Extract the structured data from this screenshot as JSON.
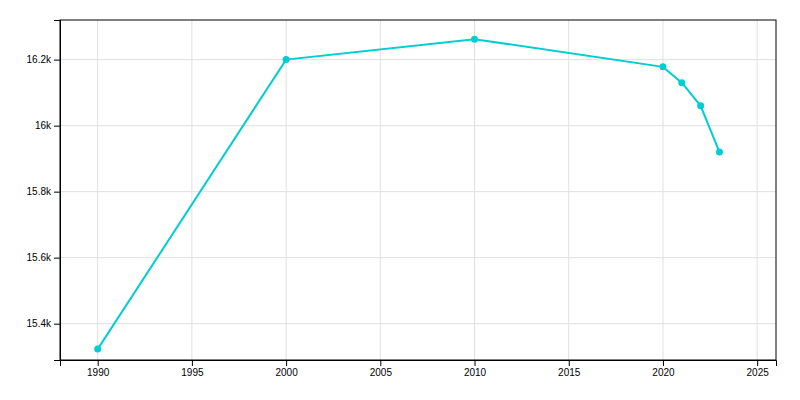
{
  "chart_data": {
    "type": "line",
    "x": [
      1990,
      2000,
      2010,
      2020,
      2021,
      2022,
      2023
    ],
    "values": [
      15323,
      16200,
      16262,
      16178,
      16130,
      16060,
      15920
    ],
    "color": "#00CED1",
    "marker": "circle",
    "xlim": [
      1988,
      2026
    ],
    "ylim": [
      15290,
      16320
    ],
    "xticks": [
      1990,
      1995,
      2000,
      2005,
      2010,
      2015,
      2020,
      2025
    ],
    "yticks": [
      {
        "value": 15400,
        "label": "15.4k"
      },
      {
        "value": 15600,
        "label": "15.6k"
      },
      {
        "value": 15800,
        "label": "15.8k"
      },
      {
        "value": 16000,
        "label": "16k"
      },
      {
        "value": 16200,
        "label": "16.2k"
      }
    ],
    "grid": true
  }
}
